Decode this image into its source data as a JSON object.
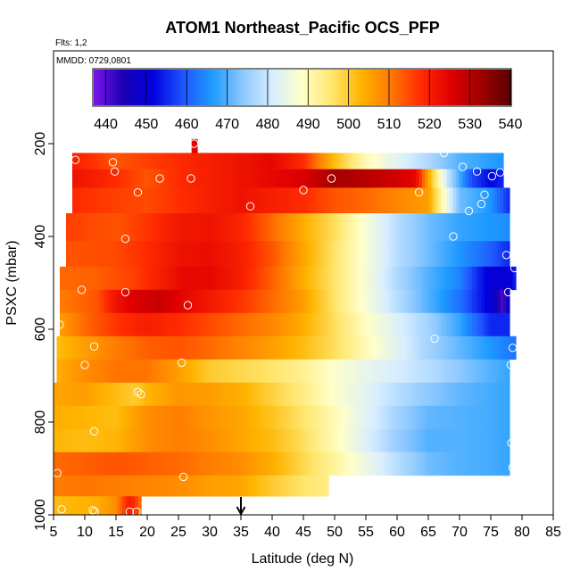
{
  "chart_data": {
    "type": "heatmap",
    "title": "ATOM1 Northeast_Pacific OCS_PFP",
    "subtitle_flights": "Flts: 1,2",
    "subtitle_dates": "MMDD: 0729,0801",
    "xlabel": "Latitude (deg N)",
    "ylabel": "PSXC (mbar)",
    "xlim": [
      5,
      85
    ],
    "ylim": [
      1000,
      0
    ],
    "xticks": [
      "5",
      "10",
      "15",
      "20",
      "25",
      "30",
      "35",
      "40",
      "45",
      "50",
      "55",
      "60",
      "65",
      "70",
      "75",
      "80",
      "85"
    ],
    "yticks": [
      "200",
      "400",
      "600",
      "800",
      "1000"
    ],
    "colorbar": {
      "min": 437,
      "max": 540,
      "tick_labels": [
        "440",
        "450",
        "460",
        "470",
        "480",
        "490",
        "500",
        "510",
        "520",
        "530",
        "540"
      ],
      "colors": [
        "#7a16ea",
        "#1a00b4",
        "#0000e0",
        "#1f55ff",
        "#1e9bff",
        "#8cc8ff",
        "#d8eeff",
        "#ffffc8",
        "#ffe66e",
        "#ffb400",
        "#ff7800",
        "#ff2a00",
        "#e00000",
        "#a00000",
        "#5a0000"
      ]
    },
    "marker_arrow_latitude": 35,
    "rows": [
      {
        "pressure": 200,
        "lat_start": 27.1,
        "lat_end": 28.0,
        "anchors": [
          [
            27,
            525
          ]
        ]
      },
      {
        "pressure": 240,
        "lat_start": 8.0,
        "lat_end": 77.0,
        "anchors": [
          [
            8,
            520
          ],
          [
            15,
            514
          ],
          [
            20,
            516
          ],
          [
            30,
            520
          ],
          [
            40,
            524
          ],
          [
            45,
            518
          ],
          [
            50,
            502
          ],
          [
            55,
            490
          ],
          [
            60,
            483
          ],
          [
            65,
            477
          ],
          [
            70,
            470
          ],
          [
            75,
            467
          ],
          [
            77,
            466
          ]
        ]
      },
      {
        "pressure": 270,
        "lat_start": 8.0,
        "lat_end": 77.0,
        "anchors": [
          [
            8,
            522
          ],
          [
            15,
            518
          ],
          [
            20,
            514
          ],
          [
            25,
            518
          ],
          [
            30,
            520
          ],
          [
            35,
            522
          ],
          [
            40,
            524
          ],
          [
            45,
            526
          ],
          [
            50,
            532
          ],
          [
            55,
            530
          ],
          [
            60,
            527
          ],
          [
            63,
            524
          ],
          [
            65,
            505
          ],
          [
            68,
            480
          ],
          [
            72,
            458
          ],
          [
            75,
            452
          ],
          [
            77,
            455
          ]
        ]
      },
      {
        "pressure": 320,
        "lat_start": 8.0,
        "lat_end": 78.0,
        "anchors": [
          [
            8,
            518
          ],
          [
            15,
            516
          ],
          [
            20,
            515
          ],
          [
            30,
            520
          ],
          [
            35,
            522
          ],
          [
            40,
            520
          ],
          [
            45,
            518
          ],
          [
            50,
            514
          ],
          [
            55,
            512
          ],
          [
            60,
            509
          ],
          [
            65,
            506
          ],
          [
            68,
            485
          ],
          [
            70,
            472
          ],
          [
            75,
            466
          ],
          [
            78,
            455
          ]
        ]
      },
      {
        "pressure": 380,
        "lat_start": 7.0,
        "lat_end": 78.0,
        "anchors": [
          [
            7,
            516
          ],
          [
            15,
            514
          ],
          [
            20,
            517
          ],
          [
            25,
            521
          ],
          [
            30,
            522
          ],
          [
            35,
            519
          ],
          [
            40,
            512
          ],
          [
            45,
            504
          ],
          [
            50,
            497
          ],
          [
            55,
            487
          ],
          [
            60,
            478
          ],
          [
            65,
            472
          ],
          [
            70,
            468
          ],
          [
            75,
            466
          ],
          [
            78,
            465
          ]
        ]
      },
      {
        "pressure": 440,
        "lat_start": 7.0,
        "lat_end": 78.0,
        "anchors": [
          [
            7,
            514
          ],
          [
            15,
            515
          ],
          [
            20,
            518
          ],
          [
            25,
            522
          ],
          [
            30,
            523
          ],
          [
            35,
            520
          ],
          [
            40,
            514
          ],
          [
            45,
            505
          ],
          [
            50,
            496
          ],
          [
            55,
            487
          ],
          [
            60,
            478
          ],
          [
            65,
            472
          ],
          [
            70,
            466
          ],
          [
            75,
            460
          ],
          [
            78,
            455
          ]
        ]
      },
      {
        "pressure": 490,
        "lat_start": 6.0,
        "lat_end": 79.0,
        "anchors": [
          [
            6,
            512
          ],
          [
            12,
            513
          ],
          [
            18,
            516
          ],
          [
            22,
            520
          ],
          [
            26,
            524
          ],
          [
            30,
            524
          ],
          [
            35,
            520
          ],
          [
            40,
            513
          ],
          [
            45,
            504
          ],
          [
            50,
            496
          ],
          [
            55,
            487
          ],
          [
            60,
            477
          ],
          [
            65,
            470
          ],
          [
            70,
            464
          ],
          [
            73,
            455
          ],
          [
            75,
            450
          ],
          [
            78,
            450
          ],
          [
            79,
            455
          ]
        ]
      },
      {
        "pressure": 540,
        "lat_start": 6.0,
        "lat_end": 78.0,
        "anchors": [
          [
            6,
            510
          ],
          [
            12,
            514
          ],
          [
            15,
            522
          ],
          [
            18,
            526
          ],
          [
            22,
            528
          ],
          [
            26,
            524
          ],
          [
            30,
            521
          ],
          [
            35,
            517
          ],
          [
            40,
            512
          ],
          [
            45,
            506
          ],
          [
            50,
            496
          ],
          [
            55,
            487
          ],
          [
            60,
            478
          ],
          [
            65,
            470
          ],
          [
            70,
            462
          ],
          [
            75,
            450
          ],
          [
            77,
            440
          ],
          [
            78,
            450
          ]
        ]
      },
      {
        "pressure": 590,
        "lat_start": 6.0,
        "lat_end": 78.0,
        "anchors": [
          [
            6,
            506
          ],
          [
            10,
            512
          ],
          [
            15,
            517
          ],
          [
            20,
            520
          ],
          [
            25,
            518
          ],
          [
            30,
            515
          ],
          [
            35,
            512
          ],
          [
            40,
            509
          ],
          [
            45,
            504
          ],
          [
            50,
            497
          ],
          [
            55,
            489
          ],
          [
            60,
            482
          ],
          [
            65,
            476
          ],
          [
            70,
            468
          ],
          [
            75,
            455
          ],
          [
            78,
            455
          ]
        ]
      },
      {
        "pressure": 640,
        "lat_start": 5.5,
        "lat_end": 79.0,
        "anchors": [
          [
            5.5,
            502
          ],
          [
            10,
            506
          ],
          [
            15,
            510
          ],
          [
            20,
            513
          ],
          [
            25,
            514
          ],
          [
            30,
            512
          ],
          [
            35,
            509
          ],
          [
            40,
            506
          ],
          [
            45,
            502
          ],
          [
            50,
            497
          ],
          [
            55,
            490
          ],
          [
            60,
            483
          ],
          [
            65,
            476
          ],
          [
            70,
            471
          ],
          [
            75,
            466
          ],
          [
            79,
            462
          ]
        ]
      },
      {
        "pressure": 690,
        "lat_start": 5.5,
        "lat_end": 78.0,
        "anchors": [
          [
            5.5,
            504
          ],
          [
            10,
            508
          ],
          [
            15,
            511
          ],
          [
            20,
            511
          ],
          [
            25,
            506
          ],
          [
            30,
            500
          ],
          [
            35,
            498
          ],
          [
            40,
            496
          ],
          [
            45,
            493
          ],
          [
            50,
            488
          ],
          [
            55,
            484
          ],
          [
            60,
            481
          ],
          [
            65,
            478
          ],
          [
            70,
            474
          ],
          [
            75,
            470
          ],
          [
            78,
            468
          ]
        ]
      },
      {
        "pressure": 740,
        "lat_start": 5.0,
        "lat_end": 78.0,
        "anchors": [
          [
            5,
            505
          ],
          [
            10,
            506
          ],
          [
            15,
            502
          ],
          [
            18,
            500
          ],
          [
            20,
            503
          ],
          [
            25,
            507
          ],
          [
            30,
            506
          ],
          [
            35,
            504
          ],
          [
            40,
            499
          ],
          [
            45,
            494
          ],
          [
            50,
            488
          ],
          [
            55,
            483
          ],
          [
            60,
            478
          ],
          [
            65,
            474
          ],
          [
            70,
            471
          ],
          [
            75,
            469
          ],
          [
            78,
            468
          ]
        ]
      },
      {
        "pressure": 790,
        "lat_start": 5.0,
        "lat_end": 78.0,
        "anchors": [
          [
            5,
            504
          ],
          [
            10,
            503
          ],
          [
            15,
            502
          ],
          [
            20,
            508
          ],
          [
            25,
            510
          ],
          [
            30,
            507
          ],
          [
            35,
            505
          ],
          [
            40,
            501
          ],
          [
            45,
            496
          ],
          [
            50,
            490
          ],
          [
            55,
            483
          ],
          [
            60,
            476
          ],
          [
            65,
            471
          ],
          [
            70,
            470
          ],
          [
            75,
            469
          ],
          [
            78,
            468
          ]
        ]
      },
      {
        "pressure": 840,
        "lat_start": 5.0,
        "lat_end": 78.0,
        "anchors": [
          [
            5,
            503
          ],
          [
            10,
            502
          ],
          [
            15,
            503
          ],
          [
            20,
            508
          ],
          [
            25,
            510
          ],
          [
            30,
            508
          ],
          [
            35,
            505
          ],
          [
            40,
            502
          ],
          [
            45,
            497
          ],
          [
            50,
            490
          ],
          [
            55,
            482
          ],
          [
            60,
            475
          ],
          [
            65,
            470
          ],
          [
            70,
            470
          ],
          [
            75,
            469
          ],
          [
            78,
            468
          ]
        ]
      },
      {
        "pressure": 890,
        "lat_start": 5.0,
        "lat_end": 78.0,
        "anchors": [
          [
            5,
            512
          ],
          [
            10,
            513
          ],
          [
            15,
            514
          ],
          [
            20,
            513
          ],
          [
            25,
            512
          ],
          [
            30,
            510
          ],
          [
            35,
            508
          ],
          [
            40,
            504
          ],
          [
            45,
            498
          ],
          [
            50,
            492
          ],
          [
            55,
            485
          ],
          [
            60,
            478
          ],
          [
            65,
            472
          ],
          [
            70,
            470
          ],
          [
            75,
            469
          ],
          [
            78,
            468
          ]
        ]
      },
      {
        "pressure": 940,
        "lat_start": 5.0,
        "lat_end": 49.0,
        "anchors": [
          [
            5,
            510
          ],
          [
            10,
            511
          ],
          [
            15,
            510
          ],
          [
            20,
            509
          ],
          [
            25,
            508
          ],
          [
            30,
            506
          ],
          [
            35,
            505
          ],
          [
            40,
            500
          ],
          [
            45,
            496
          ],
          [
            49,
            494
          ]
        ]
      },
      {
        "pressure": 980,
        "lat_start": 5.0,
        "lat_end": 19.0,
        "anchors": [
          [
            5,
            502
          ],
          [
            12,
            504
          ],
          [
            15,
            508
          ],
          [
            17,
            520
          ],
          [
            18,
            518
          ],
          [
            19,
            510
          ]
        ]
      }
    ],
    "sample_points": [
      [
        27.5,
        200
      ],
      [
        8.5,
        235
      ],
      [
        14.5,
        240
      ],
      [
        67.5,
        220
      ],
      [
        14.8,
        260
      ],
      [
        70.5,
        250
      ],
      [
        72.8,
        260
      ],
      [
        75.2,
        270
      ],
      [
        76.5,
        262
      ],
      [
        22,
        275
      ],
      [
        27,
        275
      ],
      [
        45,
        300
      ],
      [
        49.5,
        275
      ],
      [
        63.5,
        305
      ],
      [
        18.5,
        305
      ],
      [
        74,
        310
      ],
      [
        73.5,
        330
      ],
      [
        36.5,
        335
      ],
      [
        71.5,
        345
      ],
      [
        16.5,
        405
      ],
      [
        69,
        400
      ],
      [
        77.5,
        440
      ],
      [
        78.8,
        468
      ],
      [
        9.5,
        515
      ],
      [
        16.5,
        520
      ],
      [
        26.5,
        548
      ],
      [
        77.8,
        520
      ],
      [
        6,
        590
      ],
      [
        66,
        620
      ],
      [
        11.5,
        637
      ],
      [
        78.5,
        640
      ],
      [
        25.5,
        672
      ],
      [
        10,
        677
      ],
      [
        78.2,
        677
      ],
      [
        18.5,
        735
      ],
      [
        19,
        740
      ],
      [
        11.5,
        820
      ],
      [
        78.3,
        845
      ],
      [
        78.5,
        898
      ],
      [
        25.8,
        918
      ],
      [
        5.6,
        910
      ],
      [
        6.3,
        988
      ],
      [
        11.3,
        990
      ],
      [
        11.6,
        993
      ],
      [
        17.2,
        993
      ],
      [
        18.3,
        993
      ]
    ]
  }
}
